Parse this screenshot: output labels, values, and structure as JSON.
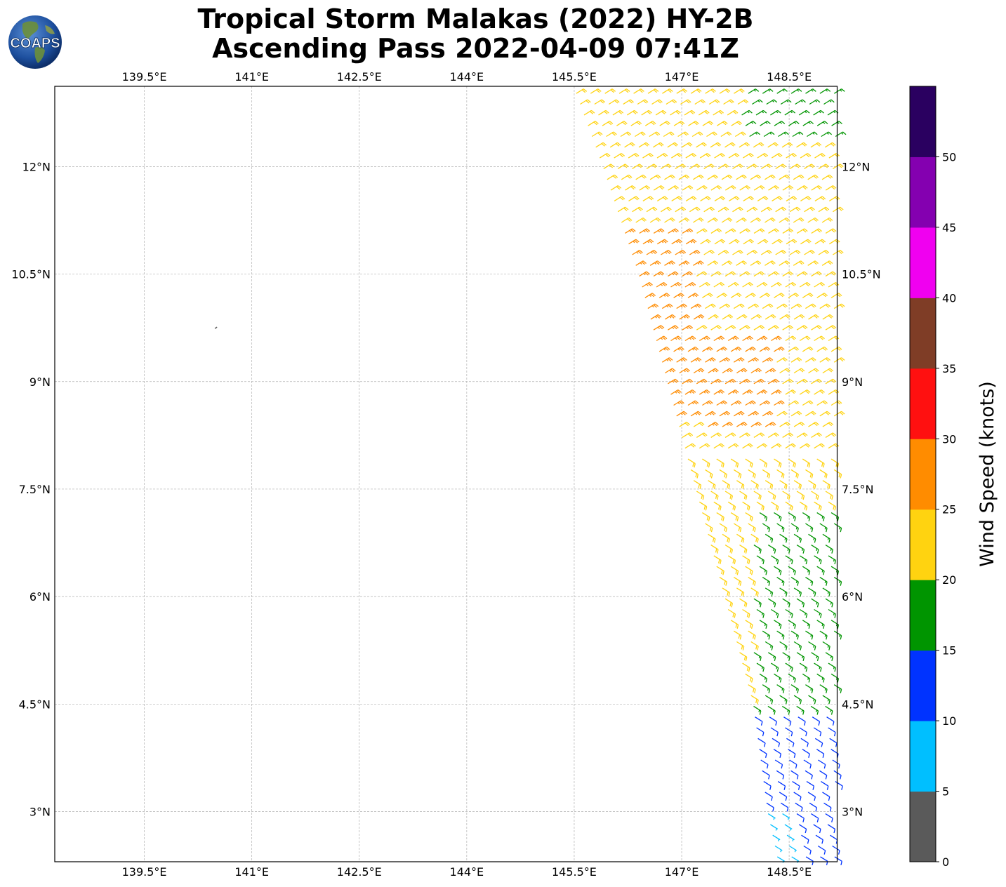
{
  "header": {
    "title_line1": "Tropical Storm Malakas (2022) HY-2B",
    "title_line2": "Ascending Pass 2022-04-09 07:41Z",
    "logo_text": "COAPS"
  },
  "chart_data": {
    "type": "wind_barb_map",
    "title": "Tropical Storm Malakas (2022) HY-2B Ascending Pass 2022-04-09 07:41Z",
    "x_ticks": [
      {
        "value": 139.5,
        "label": "139.5°E"
      },
      {
        "value": 141.0,
        "label": "141°E"
      },
      {
        "value": 142.5,
        "label": "142.5°E"
      },
      {
        "value": 144.0,
        "label": "144°E"
      },
      {
        "value": 145.5,
        "label": "145.5°E"
      },
      {
        "value": 147.0,
        "label": "147°E"
      },
      {
        "value": 148.5,
        "label": "148.5°E"
      }
    ],
    "y_ticks": [
      {
        "value": 3.0,
        "label": "3°N"
      },
      {
        "value": 4.5,
        "label": "4.5°N"
      },
      {
        "value": 6.0,
        "label": "6°N"
      },
      {
        "value": 7.5,
        "label": "7.5°N"
      },
      {
        "value": 9.0,
        "label": "9°N"
      },
      {
        "value": 10.5,
        "label": "10.5°N"
      },
      {
        "value": 12.0,
        "label": "12°N"
      }
    ],
    "xlim": [
      138.25,
      149.17
    ],
    "ylim": [
      2.3,
      13.12
    ],
    "grid": true,
    "colorbar": {
      "label": "Wind Speed (knots)",
      "ticks": [
        "0",
        "5",
        "10",
        "15",
        "20",
        "25",
        "30",
        "35",
        "40",
        "45",
        "50"
      ],
      "bins": [
        {
          "min": 0,
          "max": 5,
          "color": "#5a5a5a"
        },
        {
          "min": 5,
          "max": 10,
          "color": "#00bfff"
        },
        {
          "min": 10,
          "max": 15,
          "color": "#0033ff"
        },
        {
          "min": 15,
          "max": 20,
          "color": "#009500"
        },
        {
          "min": 20,
          "max": 25,
          "color": "#ffd310"
        },
        {
          "min": 25,
          "max": 30,
          "color": "#ff8c00"
        },
        {
          "min": 30,
          "max": 35,
          "color": "#ff1010"
        },
        {
          "min": 35,
          "max": 40,
          "color": "#7f3d26"
        },
        {
          "min": 40,
          "max": 45,
          "color": "#f000f0"
        },
        {
          "min": 45,
          "max": 50,
          "color": "#8400b0"
        },
        {
          "min": 50,
          "max": 55,
          "color": "#2a0060"
        }
      ]
    },
    "swath": {
      "description_free": true,
      "west_edge": [
        [
          13.1,
          145.5
        ],
        [
          12.0,
          145.9
        ],
        [
          10.5,
          146.4
        ],
        [
          9.0,
          146.8
        ],
        [
          7.5,
          147.2
        ],
        [
          6.0,
          147.6
        ],
        [
          4.5,
          148.0
        ],
        [
          3.0,
          148.2
        ],
        [
          2.3,
          148.35
        ]
      ],
      "east_edge_lon": 149.17,
      "resolution_deg": 0.2
    },
    "speed_regions": [
      {
        "lat_min": 12.4,
        "lat_max": 13.12,
        "lon_min": 147.8,
        "lon_max": 149.17,
        "speed": 17
      },
      {
        "lat_min": 8.4,
        "lat_max": 11.2,
        "lon_min": 146.0,
        "lon_max": 147.2,
        "speed": 27
      },
      {
        "lat_min": 8.3,
        "lat_max": 9.6,
        "lon_min": 147.2,
        "lon_max": 148.3,
        "speed": 26
      },
      {
        "lat_min": 4.4,
        "lat_max": 7.3,
        "lon_min": 148.0,
        "lon_max": 149.17,
        "speed": 17
      },
      {
        "lat_min": 2.3,
        "lat_max": 4.4,
        "lon_min": 148.0,
        "lon_max": 149.17,
        "speed": 12
      },
      {
        "lat_min": 2.3,
        "lat_max": 3.0,
        "lon_min": 148.2,
        "lon_max": 148.6,
        "speed": 8
      }
    ],
    "default_speed": 22,
    "isolated_marks": [
      {
        "lat": 9.75,
        "lon": 140.5,
        "speed": 3
      }
    ]
  }
}
